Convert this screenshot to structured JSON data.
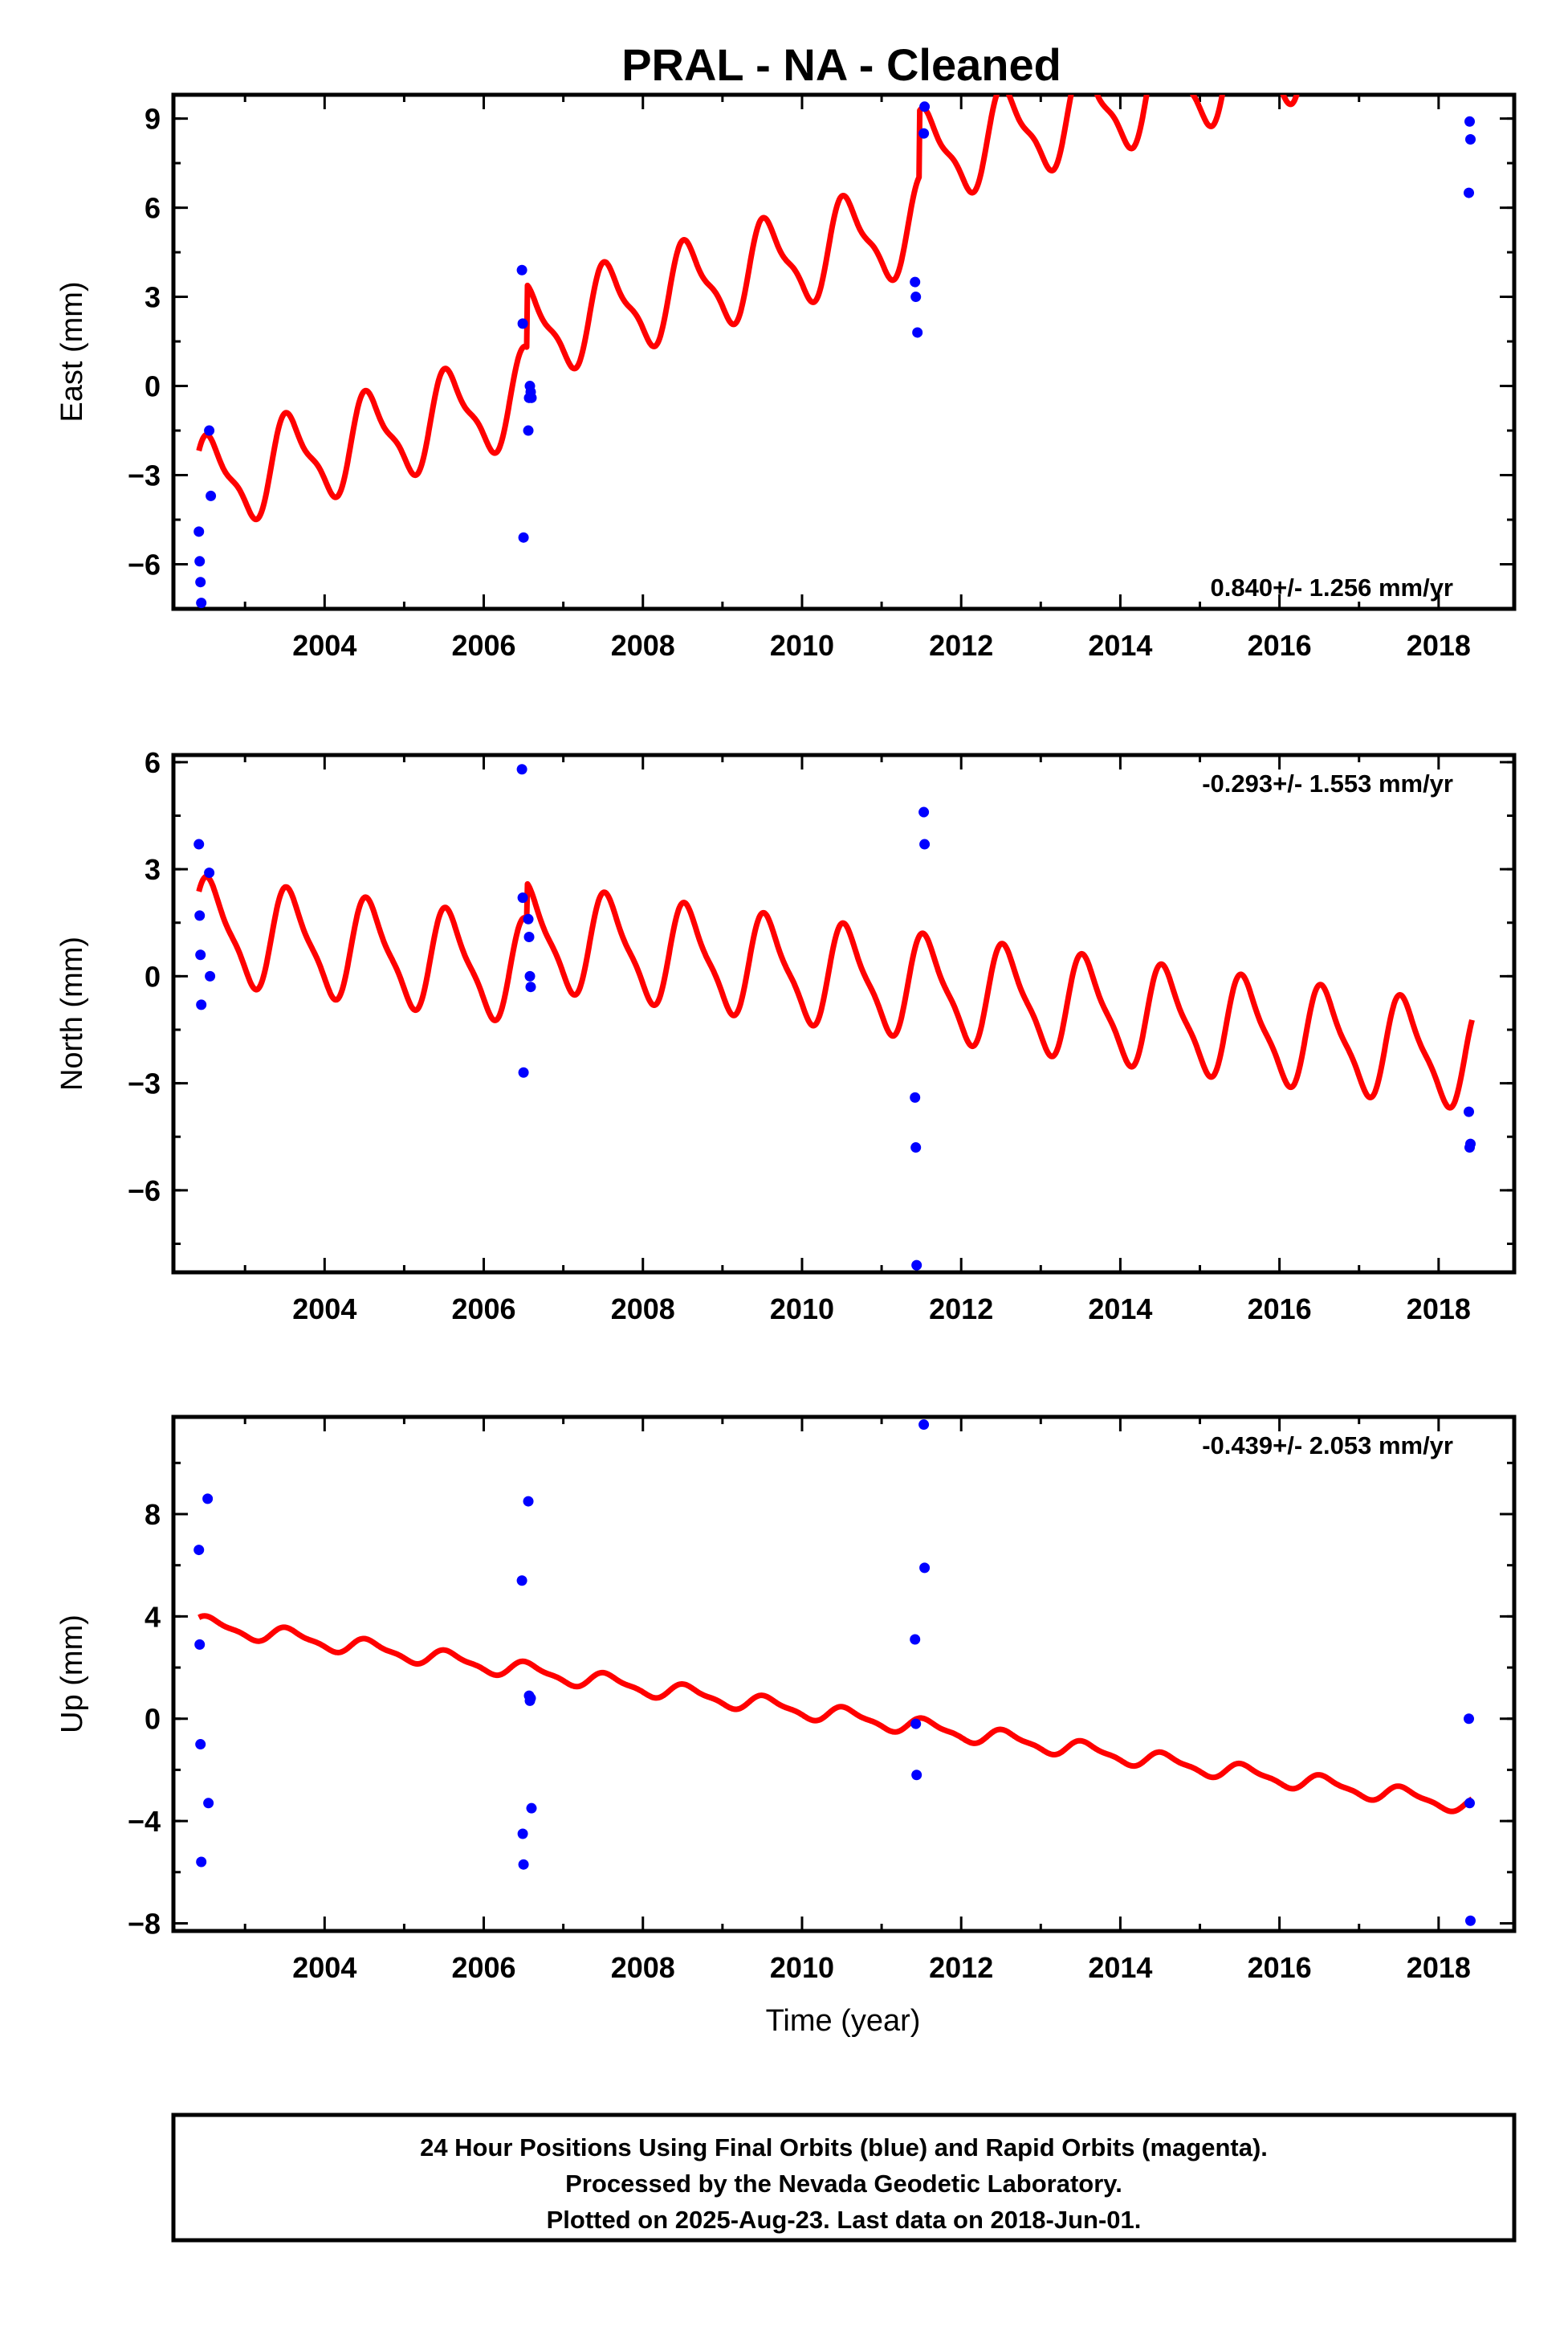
{
  "chart_data": [
    {
      "type": "scatter",
      "title": "PRAL  - NA - Cleaned",
      "ylabel": "East (mm)",
      "xlabel": "",
      "xlim": [
        2002.1,
        2018.95
      ],
      "ylim": [
        -7.5,
        9.8
      ],
      "yticks": [
        -6,
        -3,
        0,
        3,
        6,
        9
      ],
      "xticks": [
        2004,
        2006,
        2008,
        2010,
        2012,
        2014,
        2016,
        2018
      ],
      "rate_text": "0.840+/- 1.256 mm/yr",
      "rate_position": "bottom-right",
      "grid": false,
      "series": [
        {
          "kind": "points",
          "color": "#0000ff",
          "x": [
            2002.42,
            2002.43,
            2002.44,
            2002.45,
            2002.55,
            2002.57,
            2006.48,
            2006.49,
            2006.5,
            2006.56,
            2006.57,
            2006.58,
            2006.59,
            2006.6,
            2011.42,
            2011.43,
            2011.45,
            2011.53,
            2011.54,
            2018.38,
            2018.39,
            2018.4
          ],
          "y": [
            -4.9,
            -5.9,
            -6.6,
            -7.3,
            -1.5,
            -3.7,
            3.9,
            2.1,
            -5.1,
            -1.5,
            -0.4,
            0.0,
            -0.2,
            -0.4,
            3.5,
            3.0,
            1.8,
            8.5,
            9.4,
            6.5,
            8.9,
            8.3
          ]
        },
        {
          "kind": "model",
          "color": "#ff0000",
          "x_start": 2002.42,
          "x_end": 2018.42,
          "trend_start": -3.4,
          "trend_end": 8.5,
          "annual_amplitude": 1.45,
          "semiannual_amplitude": 0.45,
          "offsets": [
            {
              "x": 2006.55,
              "dy": 2.1
            },
            {
              "x": 2011.48,
              "dy": 2.2
            }
          ]
        }
      ]
    },
    {
      "type": "scatter",
      "title": "",
      "ylabel": "North (mm)",
      "xlabel": "",
      "xlim": [
        2002.1,
        2018.95
      ],
      "ylim": [
        -8.3,
        6.2
      ],
      "yticks": [
        -6,
        -3,
        0,
        3,
        6
      ],
      "xticks": [
        2004,
        2006,
        2008,
        2010,
        2012,
        2014,
        2016,
        2018
      ],
      "rate_text": "-0.293+/- 1.553 mm/yr",
      "rate_position": "top-right",
      "grid": false,
      "series": [
        {
          "kind": "points",
          "color": "#0000ff",
          "x": [
            2002.42,
            2002.43,
            2002.44,
            2002.45,
            2002.55,
            2002.56,
            2006.48,
            2006.49,
            2006.5,
            2006.56,
            2006.57,
            2006.58,
            2006.59,
            2011.42,
            2011.43,
            2011.44,
            2011.53,
            2011.54,
            2018.38,
            2018.39,
            2018.4
          ],
          "y": [
            3.7,
            1.7,
            0.6,
            -0.8,
            2.9,
            0.0,
            5.8,
            2.2,
            -2.7,
            1.6,
            1.1,
            0.0,
            -0.3,
            -3.4,
            -4.8,
            -8.1,
            4.6,
            3.7,
            -3.8,
            -4.8,
            -4.7
          ]
        },
        {
          "kind": "model",
          "color": "#ff0000",
          "x_start": 2002.42,
          "x_end": 2018.42,
          "trend_start": 1.3,
          "trend_end": -3.3,
          "annual_amplitude": 1.35,
          "semiannual_amplitude": 0.35,
          "offsets": [
            {
              "x": 2006.55,
              "dy": 1.0
            }
          ]
        }
      ]
    },
    {
      "type": "scatter",
      "title": "",
      "ylabel": "Up (mm)",
      "xlabel": "Time (year)",
      "xlim": [
        2002.1,
        2018.95
      ],
      "ylim": [
        -8.3,
        11.8
      ],
      "yticks": [
        -8,
        -4,
        0,
        4,
        8
      ],
      "xticks": [
        2004,
        2006,
        2008,
        2010,
        2012,
        2014,
        2016,
        2018
      ],
      "rate_text": "-0.439+/- 2.053 mm/yr",
      "rate_position": "top-right",
      "grid": false,
      "series": [
        {
          "kind": "points",
          "color": "#0000ff",
          "x": [
            2002.42,
            2002.43,
            2002.44,
            2002.45,
            2002.53,
            2002.54,
            2006.48,
            2006.49,
            2006.5,
            2006.56,
            2006.57,
            2006.58,
            2006.59,
            2006.6,
            2011.42,
            2011.43,
            2011.44,
            2011.53,
            2011.54,
            2018.38,
            2018.39,
            2018.4
          ],
          "y": [
            6.6,
            2.9,
            -1.0,
            -5.6,
            8.6,
            -3.3,
            5.4,
            -4.5,
            -5.7,
            8.5,
            0.9,
            0.7,
            0.8,
            -3.5,
            3.1,
            -0.2,
            -2.2,
            11.5,
            5.9,
            0.0,
            -3.3,
            -7.9
          ]
        },
        {
          "kind": "model",
          "color": "#ff0000",
          "x_start": 2002.42,
          "x_end": 2018.42,
          "trend_start": 3.7,
          "trend_end": -3.4,
          "annual_amplitude": 0.3,
          "semiannual_amplitude": 0.1,
          "offsets": []
        }
      ]
    }
  ],
  "caption": {
    "lines": [
      "24 Hour Positions Using Final Orbits (blue) and Rapid Orbits (magenta).",
      "Processed by the Nevada Geodetic Laboratory.",
      "Plotted on 2025-Aug-23. Last data on 2018-Jun-01."
    ]
  }
}
